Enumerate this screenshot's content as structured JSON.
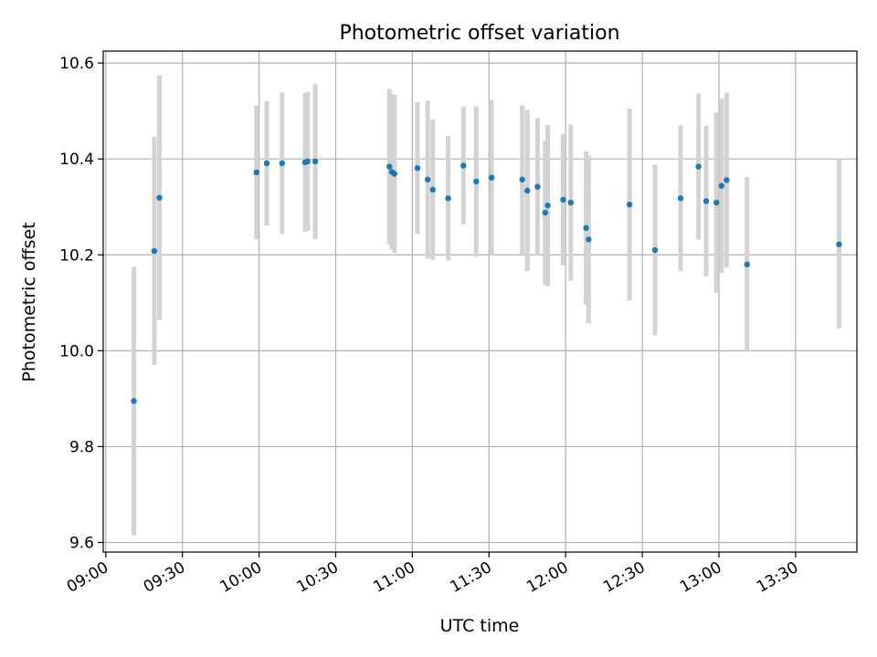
{
  "chart_data": {
    "type": "scatter",
    "title": "Photometric offset variation",
    "xlabel": "UTC time",
    "ylabel": "Photometric offset",
    "x_ticks": [
      "09:00",
      "09:30",
      "10:00",
      "10:30",
      "11:00",
      "11:30",
      "12:00",
      "12:30",
      "13:00",
      "13:30"
    ],
    "y_ticks": [
      "9.6",
      "9.8",
      "10.0",
      "10.2",
      "10.4",
      "10.6"
    ],
    "xlim": [
      "08:59",
      "13:54"
    ],
    "ylim": [
      9.58,
      10.625
    ],
    "grid": true,
    "colors": {
      "marker": "#1f77b4",
      "errorbar": "#d3d3d3",
      "grid": "#b0b0b0"
    },
    "points": [
      {
        "time": "09:11",
        "y": 9.895,
        "yerr": 0.28
      },
      {
        "time": "09:19",
        "y": 10.208,
        "yerr": 0.238
      },
      {
        "time": "09:21",
        "y": 10.319,
        "yerr": 0.255
      },
      {
        "time": "09:59",
        "y": 10.372,
        "yerr": 0.14
      },
      {
        "time": "10:03",
        "y": 10.391,
        "yerr": 0.13
      },
      {
        "time": "10:09",
        "y": 10.391,
        "yerr": 0.148
      },
      {
        "time": "10:18",
        "y": 10.393,
        "yerr": 0.145
      },
      {
        "time": "10:19",
        "y": 10.395,
        "yerr": 0.145
      },
      {
        "time": "10:22",
        "y": 10.395,
        "yerr": 0.162
      },
      {
        "time": "10:51",
        "y": 10.384,
        "yerr": 0.162
      },
      {
        "time": "10:52",
        "y": 10.373,
        "yerr": 0.162
      },
      {
        "time": "10:53",
        "y": 10.369,
        "yerr": 0.165
      },
      {
        "time": "11:02",
        "y": 10.381,
        "yerr": 0.138
      },
      {
        "time": "11:06",
        "y": 10.357,
        "yerr": 0.165
      },
      {
        "time": "11:08",
        "y": 10.336,
        "yerr": 0.147
      },
      {
        "time": "11:14",
        "y": 10.318,
        "yerr": 0.13
      },
      {
        "time": "11:20",
        "y": 10.386,
        "yerr": 0.123
      },
      {
        "time": "11:25",
        "y": 10.353,
        "yerr": 0.157
      },
      {
        "time": "11:31",
        "y": 10.361,
        "yerr": 0.162
      },
      {
        "time": "11:43",
        "y": 10.357,
        "yerr": 0.155
      },
      {
        "time": "11:45",
        "y": 10.334,
        "yerr": 0.168
      },
      {
        "time": "11:49",
        "y": 10.342,
        "yerr": 0.143
      },
      {
        "time": "11:52",
        "y": 10.288,
        "yerr": 0.15
      },
      {
        "time": "11:53",
        "y": 10.303,
        "yerr": 0.168
      },
      {
        "time": "11:59",
        "y": 10.315,
        "yerr": 0.137
      },
      {
        "time": "12:02",
        "y": 10.309,
        "yerr": 0.163
      },
      {
        "time": "12:08",
        "y": 10.256,
        "yerr": 0.16
      },
      {
        "time": "12:09",
        "y": 10.232,
        "yerr": 0.175
      },
      {
        "time": "12:25",
        "y": 10.305,
        "yerr": 0.2
      },
      {
        "time": "12:35",
        "y": 10.21,
        "yerr": 0.178
      },
      {
        "time": "12:45",
        "y": 10.318,
        "yerr": 0.152
      },
      {
        "time": "12:52",
        "y": 10.384,
        "yerr": 0.152
      },
      {
        "time": "12:55",
        "y": 10.312,
        "yerr": 0.157
      },
      {
        "time": "12:59",
        "y": 10.309,
        "yerr": 0.188
      },
      {
        "time": "13:01",
        "y": 10.344,
        "yerr": 0.182
      },
      {
        "time": "13:03",
        "y": 10.356,
        "yerr": 0.182
      },
      {
        "time": "13:11",
        "y": 10.18,
        "yerr": 0.182
      },
      {
        "time": "13:47",
        "y": 10.222,
        "yerr": 0.176
      }
    ]
  }
}
